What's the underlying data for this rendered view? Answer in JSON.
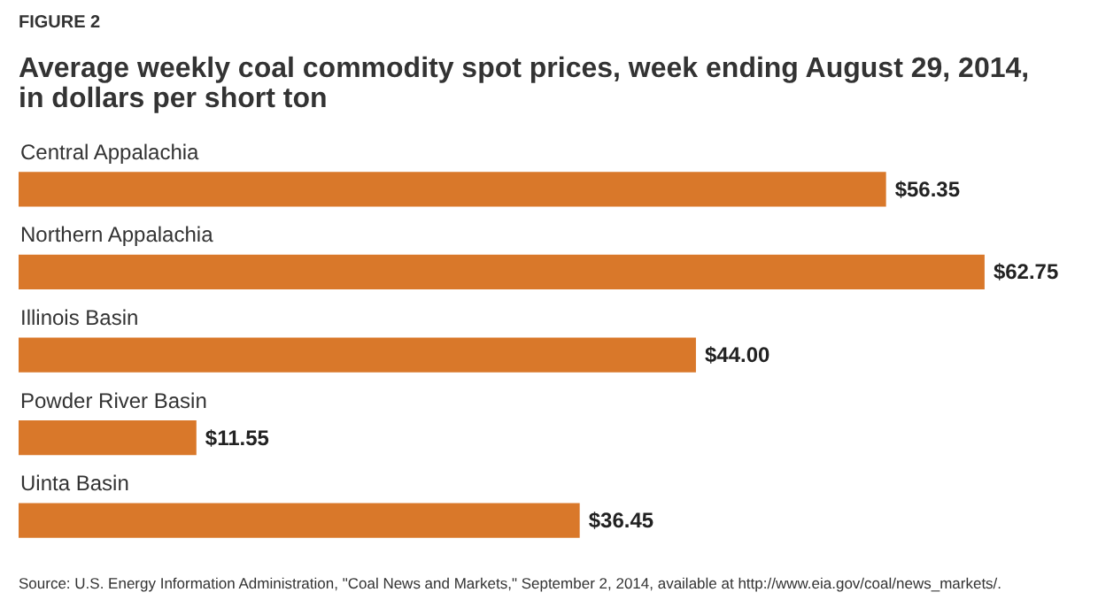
{
  "chart_data": {
    "type": "bar",
    "orientation": "horizontal",
    "title": "Average weekly coal commodity spot prices, week ending August 29, 2014, in dollars per short ton",
    "categories": [
      "Central Appalachia",
      "Northern Appalachia",
      "Illinois Basin",
      "Powder River Basin",
      "Uinta Basin"
    ],
    "values": [
      56.35,
      62.75,
      44.0,
      11.55,
      36.45
    ],
    "value_labels": [
      "$56.35",
      "$62.75",
      "$44.00",
      "$11.55",
      "$36.45"
    ],
    "color": "#d9782a",
    "annotations": [
      "FIGURE 2",
      "Source: U.S. Energy Information Administration, \"Coal News and Markets,\" September 2, 2014, available at http://www.eia.gov/coal/news_markets/."
    ],
    "grid": false
  }
}
